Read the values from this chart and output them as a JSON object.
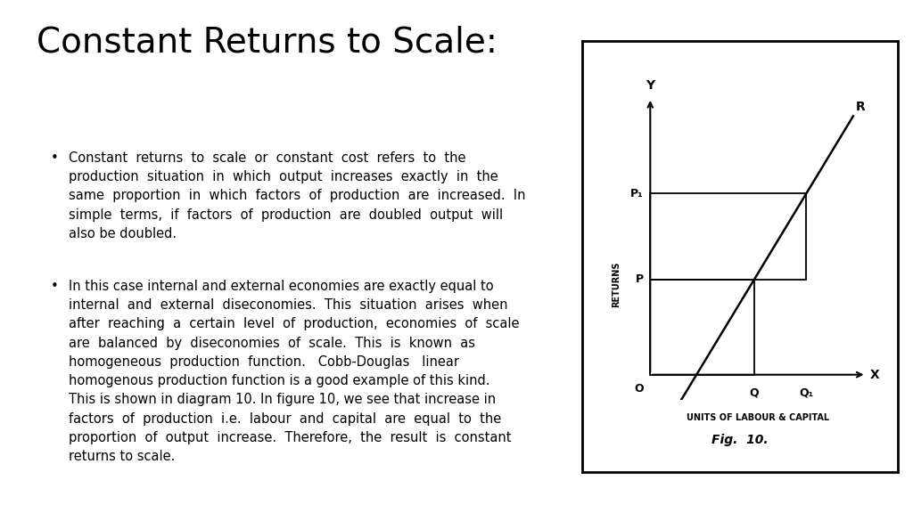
{
  "title": "Constant Returns to Scale:",
  "title_fontsize": 28,
  "bg_color": "#ffffff",
  "text_color": "#000000",
  "text_fontsize": 10.5,
  "bullet1_lines": [
    "Constant  returns  to  scale  or  constant  cost  refers  to  the",
    "production  situation  in  which  output  increases  exactly  in  the",
    "same  proportion  in  which  factors  of  production  are  increased.  In",
    "simple  terms,  if  factors  of  production  are  doubled  output  will",
    "also be doubled."
  ],
  "bullet2_lines": [
    "In this case internal and external economies are exactly equal to",
    "internal  and  external  diseconomies.  This  situation  arises  when",
    "after  reaching  a  certain  level  of  production,  economies  of  scale",
    "are  balanced  by  diseconomies  of  scale.  This  is  known  as",
    "homogeneous  production  function.   Cobb-Douglas   linear",
    "homogenous production function is a good example of this kind.",
    "This is shown in diagram 10. In figure 10, we see that increase in",
    "factors  of  production  i.e.  labour  and  capital  are  equal  to  the",
    "proportion  of  output  increase.  Therefore,  the  result  is  constant",
    "returns to scale."
  ],
  "fig_caption": "Fig.  10.",
  "x_label": "UNITS OF LABOUR & CAPITAL",
  "y_label": "RETURNS"
}
